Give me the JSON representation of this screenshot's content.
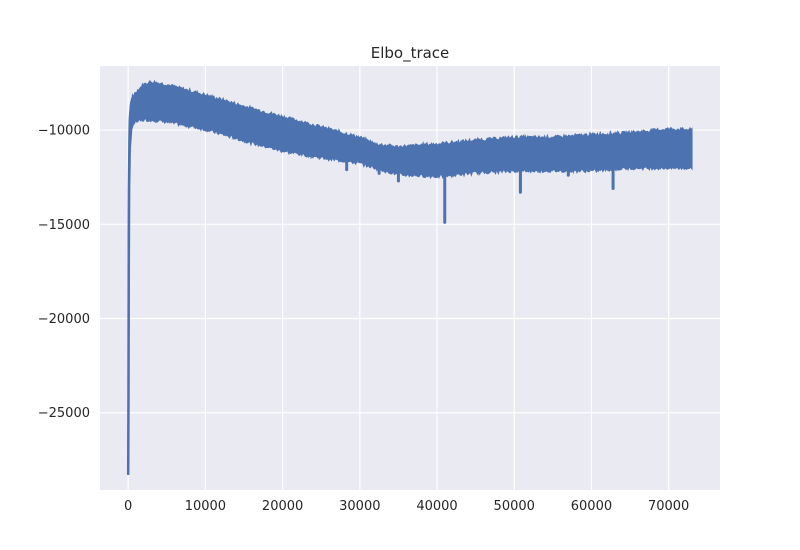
{
  "chart_data": {
    "type": "line",
    "title": "Elbo_trace",
    "xlabel": "",
    "ylabel": "",
    "xlim": [
      -3650,
      76650
    ],
    "ylim": [
      -29100,
      -6600
    ],
    "x_ticks": [
      0,
      10000,
      20000,
      30000,
      40000,
      50000,
      60000,
      70000
    ],
    "x_tick_labels": [
      "0",
      "10000",
      "20000",
      "30000",
      "40000",
      "50000",
      "60000",
      "70000"
    ],
    "y_ticks": [
      -10000,
      -15000,
      -20000,
      -25000
    ],
    "y_tick_labels": [
      "−10000",
      "−15000",
      "−20000",
      "−25000"
    ],
    "grid": true,
    "background": "#EAEAF2",
    "grid_color": "#FFFFFF",
    "line_color": "#4C72B0",
    "series": [
      {
        "band_upper": {
          "x": [
            0,
            80,
            150,
            300,
            600,
            1000,
            1500,
            2000,
            2500,
            3000,
            5000,
            10000,
            15000,
            20000,
            25000,
            30000,
            32000,
            35000,
            40000,
            45000,
            50000,
            55000,
            60000,
            65000,
            70000,
            73000
          ],
          "y": [
            -18000,
            -10800,
            -9400,
            -8600,
            -8200,
            -8000,
            -7800,
            -7600,
            -7500,
            -7450,
            -7600,
            -8150,
            -8750,
            -9300,
            -9850,
            -10400,
            -10750,
            -10900,
            -10750,
            -10550,
            -10400,
            -10400,
            -10250,
            -10150,
            -9950,
            -10000
          ]
        },
        "band_lower": {
          "x": [
            0,
            80,
            150,
            300,
            600,
            1000,
            2000,
            3000,
            5000,
            10000,
            15000,
            20000,
            25000,
            30000,
            35000,
            40000,
            45000,
            50000,
            55000,
            60000,
            65000,
            70000,
            73000
          ],
          "y": [
            -28300,
            -16000,
            -11400,
            -10000,
            -9700,
            -9550,
            -9450,
            -9450,
            -9550,
            -9950,
            -10550,
            -11100,
            -11450,
            -11750,
            -12350,
            -12450,
            -12250,
            -12150,
            -12150,
            -12150,
            -12000,
            -12000,
            -12000
          ]
        },
        "spikes": [
          {
            "x": 28300,
            "y": -12100
          },
          {
            "x": 32500,
            "y": -12300
          },
          {
            "x": 35000,
            "y": -12700
          },
          {
            "x": 41000,
            "y": -14900
          },
          {
            "x": 50800,
            "y": -13300
          },
          {
            "x": 57000,
            "y": -12400
          },
          {
            "x": 62800,
            "y": -13100
          }
        ]
      }
    ]
  }
}
